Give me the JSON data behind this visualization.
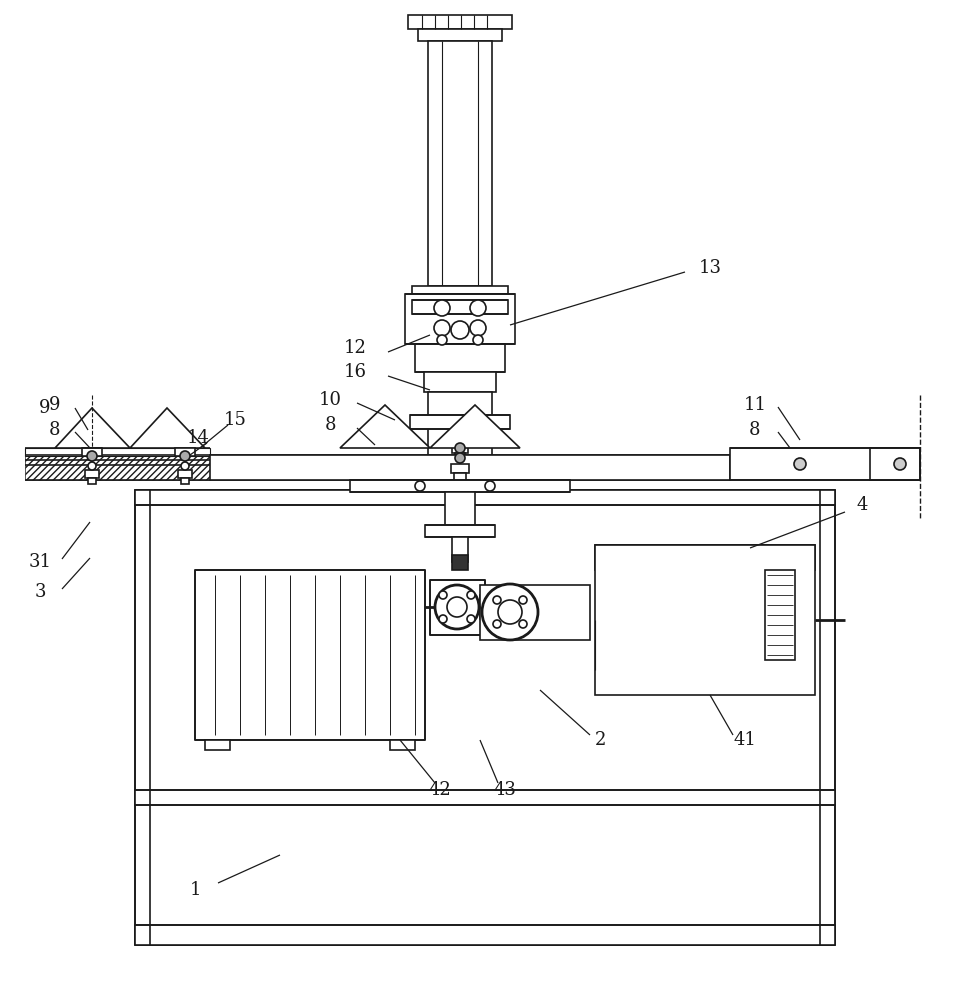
{
  "bg": "#ffffff",
  "lc": "#1a1a1a",
  "lw": 1.2
}
